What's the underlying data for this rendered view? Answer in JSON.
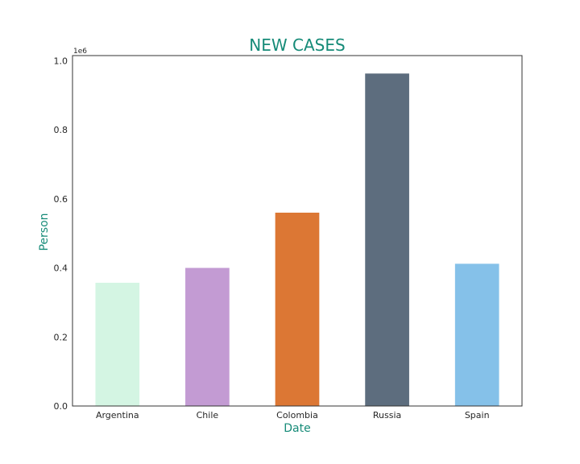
{
  "chart_data": {
    "type": "bar",
    "title": "NEW CASES",
    "xlabel": "Date",
    "ylabel": "Person",
    "y_scale_label": "1e6",
    "y_scale": 1000000,
    "categories": [
      "Argentina",
      "Chile",
      "Colombia",
      "Russia",
      "Spain"
    ],
    "values": [
      357000,
      400000,
      560000,
      963000,
      412000
    ],
    "colors": [
      "#d4f5e3",
      "#c39bd3",
      "#dc7734",
      "#5d6d7e",
      "#85c1e9"
    ],
    "ylim": [
      0,
      1015000
    ],
    "yticks": [
      0,
      200000,
      400000,
      600000,
      800000,
      1000000
    ],
    "ytick_labels": [
      "0.0",
      "0.2",
      "0.4",
      "0.6",
      "0.8",
      "1.0"
    ],
    "grid": false,
    "legend": "none"
  }
}
